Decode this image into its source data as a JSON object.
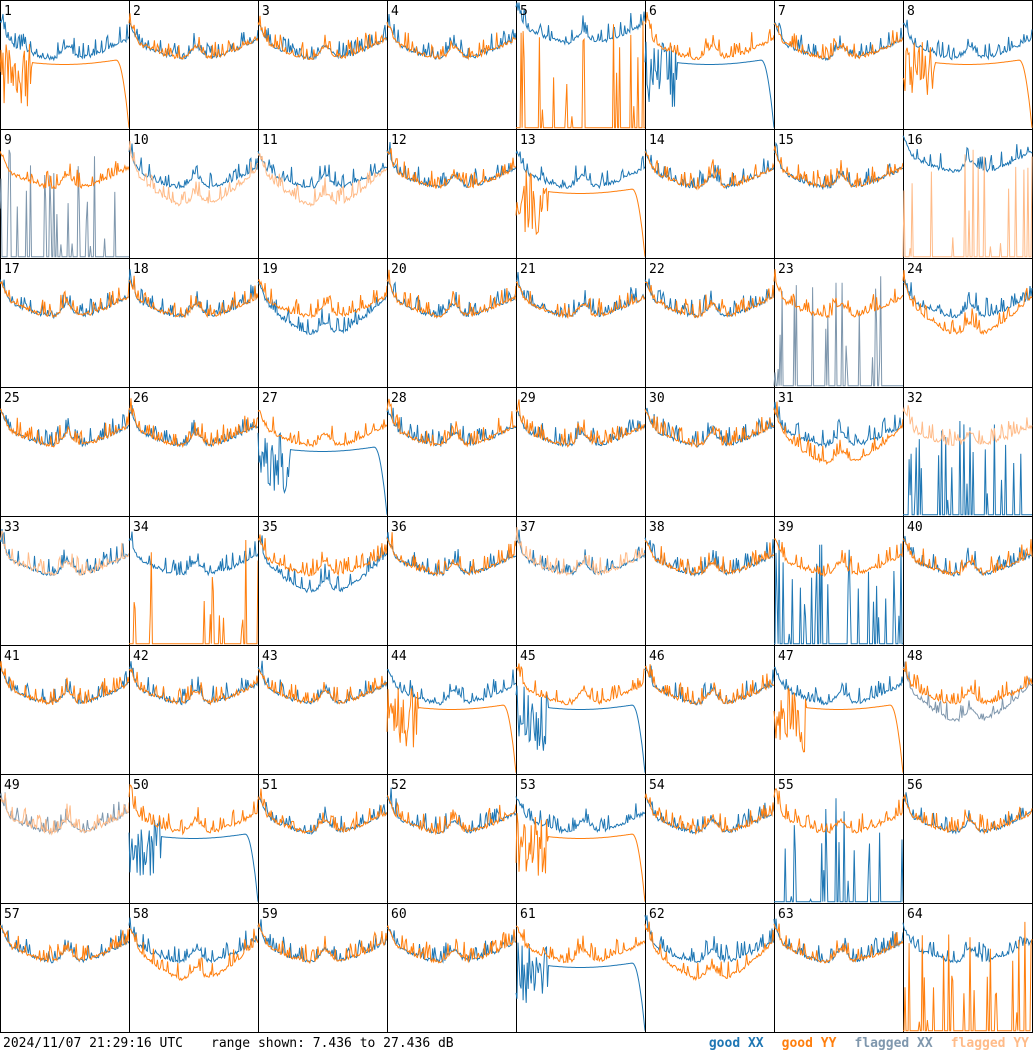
{
  "footer": {
    "timestamp": "2024/11/07 21:29:16 UTC",
    "range": "range shown: 7.436 to 27.436 dB"
  },
  "legend": {
    "good_xx": "good XX",
    "good_yy": "good YY",
    "flagged_xx": "flagged XX",
    "flagged_yy": "flagged YY"
  },
  "colors": {
    "good_xx": "#1f77b4",
    "good_yy": "#ff7f0e",
    "flagged_xx": "#7f97ad",
    "flagged_yy": "#ffbb88"
  },
  "chart_data": {
    "type": "line",
    "grid": "8x8 small multiples",
    "ylim": [
      7.436,
      27.436
    ],
    "yunit": "dB",
    "series_names": [
      "good XX",
      "good YY",
      "flagged XX",
      "flagged YY"
    ],
    "panels": [
      {
        "label": "1",
        "xx": "good",
        "yy": "good",
        "xx_shape": "normal",
        "yy_shape": "rolloff"
      },
      {
        "label": "2",
        "xx": "good",
        "yy": "good",
        "xx_shape": "normal",
        "yy_shape": "normal"
      },
      {
        "label": "3",
        "xx": "good",
        "yy": "good",
        "xx_shape": "normal",
        "yy_shape": "normal"
      },
      {
        "label": "4",
        "xx": "good",
        "yy": "good",
        "xx_shape": "normal",
        "yy_shape": "normal"
      },
      {
        "label": "5",
        "xx": "good",
        "yy": "good",
        "xx_shape": "high",
        "yy_shape": "spikes"
      },
      {
        "label": "6",
        "xx": "good",
        "yy": "good",
        "xx_shape": "rolloff",
        "yy_shape": "normal"
      },
      {
        "label": "7",
        "xx": "good",
        "yy": "good",
        "xx_shape": "normal",
        "yy_shape": "normal"
      },
      {
        "label": "8",
        "xx": "good",
        "yy": "good",
        "xx_shape": "normal",
        "yy_shape": "rolloff"
      },
      {
        "label": "9",
        "xx": "flagged",
        "yy": "good",
        "xx_shape": "spikes",
        "yy_shape": "normal"
      },
      {
        "label": "10",
        "xx": "good",
        "yy": "flagged",
        "xx_shape": "normal",
        "yy_shape": "low"
      },
      {
        "label": "11",
        "xx": "good",
        "yy": "flagged",
        "xx_shape": "normal",
        "yy_shape": "low"
      },
      {
        "label": "12",
        "xx": "good",
        "yy": "good",
        "xx_shape": "normal",
        "yy_shape": "normal"
      },
      {
        "label": "13",
        "xx": "good",
        "yy": "good",
        "xx_shape": "normal",
        "yy_shape": "rolloff"
      },
      {
        "label": "14",
        "xx": "good",
        "yy": "good",
        "xx_shape": "normal",
        "yy_shape": "normal"
      },
      {
        "label": "15",
        "xx": "good",
        "yy": "good",
        "xx_shape": "normal",
        "yy_shape": "normal"
      },
      {
        "label": "16",
        "xx": "good",
        "yy": "flagged",
        "xx_shape": "high",
        "yy_shape": "spikes"
      },
      {
        "label": "17",
        "xx": "good",
        "yy": "good",
        "xx_shape": "normal",
        "yy_shape": "normal"
      },
      {
        "label": "18",
        "xx": "good",
        "yy": "good",
        "xx_shape": "normal",
        "yy_shape": "normal"
      },
      {
        "label": "19",
        "xx": "good",
        "yy": "good",
        "xx_shape": "low",
        "yy_shape": "normal"
      },
      {
        "label": "20",
        "xx": "good",
        "yy": "good",
        "xx_shape": "normal",
        "yy_shape": "normal"
      },
      {
        "label": "21",
        "xx": "good",
        "yy": "good",
        "xx_shape": "normal",
        "yy_shape": "normal"
      },
      {
        "label": "22",
        "xx": "good",
        "yy": "good",
        "xx_shape": "normal",
        "yy_shape": "normal"
      },
      {
        "label": "23",
        "xx": "flagged",
        "yy": "good",
        "xx_shape": "spikes",
        "yy_shape": "normal"
      },
      {
        "label": "24",
        "xx": "good",
        "yy": "good",
        "xx_shape": "normal",
        "yy_shape": "low"
      },
      {
        "label": "25",
        "xx": "good",
        "yy": "good",
        "xx_shape": "normal",
        "yy_shape": "normal"
      },
      {
        "label": "26",
        "xx": "good",
        "yy": "good",
        "xx_shape": "normal",
        "yy_shape": "normal"
      },
      {
        "label": "27",
        "xx": "good",
        "yy": "good",
        "xx_shape": "rolloff",
        "yy_shape": "normal"
      },
      {
        "label": "28",
        "xx": "good",
        "yy": "good",
        "xx_shape": "normal",
        "yy_shape": "normal"
      },
      {
        "label": "29",
        "xx": "good",
        "yy": "good",
        "xx_shape": "normal",
        "yy_shape": "normal"
      },
      {
        "label": "30",
        "xx": "good",
        "yy": "good",
        "xx_shape": "normal",
        "yy_shape": "normal"
      },
      {
        "label": "31",
        "xx": "good",
        "yy": "good",
        "xx_shape": "normal",
        "yy_shape": "low"
      },
      {
        "label": "32",
        "xx": "good",
        "yy": "flagged",
        "xx_shape": "spikes",
        "yy_shape": "normal"
      },
      {
        "label": "33",
        "xx": "good",
        "yy": "flagged",
        "xx_shape": "normal",
        "yy_shape": "normal"
      },
      {
        "label": "34",
        "xx": "good",
        "yy": "good",
        "xx_shape": "normal",
        "yy_shape": "spikes"
      },
      {
        "label": "35",
        "xx": "good",
        "yy": "good",
        "xx_shape": "low",
        "yy_shape": "normal"
      },
      {
        "label": "36",
        "xx": "good",
        "yy": "good",
        "xx_shape": "normal",
        "yy_shape": "normal"
      },
      {
        "label": "37",
        "xx": "good",
        "yy": "flagged",
        "xx_shape": "normal",
        "yy_shape": "normal"
      },
      {
        "label": "38",
        "xx": "good",
        "yy": "good",
        "xx_shape": "normal",
        "yy_shape": "normal"
      },
      {
        "label": "39",
        "xx": "good",
        "yy": "good",
        "xx_shape": "spikes",
        "yy_shape": "normal"
      },
      {
        "label": "40",
        "xx": "good",
        "yy": "good",
        "xx_shape": "normal",
        "yy_shape": "normal"
      },
      {
        "label": "41",
        "xx": "good",
        "yy": "good",
        "xx_shape": "normal",
        "yy_shape": "normal"
      },
      {
        "label": "42",
        "xx": "good",
        "yy": "good",
        "xx_shape": "normal",
        "yy_shape": "normal"
      },
      {
        "label": "43",
        "xx": "good",
        "yy": "good",
        "xx_shape": "normal",
        "yy_shape": "normal"
      },
      {
        "label": "44",
        "xx": "good",
        "yy": "good",
        "xx_shape": "normal",
        "yy_shape": "rolloff"
      },
      {
        "label": "45",
        "xx": "good",
        "yy": "good",
        "xx_shape": "rolloff",
        "yy_shape": "normal"
      },
      {
        "label": "46",
        "xx": "good",
        "yy": "good",
        "xx_shape": "normal",
        "yy_shape": "normal"
      },
      {
        "label": "47",
        "xx": "good",
        "yy": "good",
        "xx_shape": "normal",
        "yy_shape": "rolloff"
      },
      {
        "label": "48",
        "xx": "flagged",
        "yy": "good",
        "xx_shape": "low",
        "yy_shape": "normal"
      },
      {
        "label": "49",
        "xx": "flagged",
        "yy": "flagged",
        "xx_shape": "normal",
        "yy_shape": "normal"
      },
      {
        "label": "50",
        "xx": "good",
        "yy": "good",
        "xx_shape": "rolloff",
        "yy_shape": "normal"
      },
      {
        "label": "51",
        "xx": "good",
        "yy": "good",
        "xx_shape": "normal",
        "yy_shape": "normal"
      },
      {
        "label": "52",
        "xx": "good",
        "yy": "good",
        "xx_shape": "normal",
        "yy_shape": "normal"
      },
      {
        "label": "53",
        "xx": "good",
        "yy": "good",
        "xx_shape": "normal",
        "yy_shape": "rolloff"
      },
      {
        "label": "54",
        "xx": "good",
        "yy": "good",
        "xx_shape": "normal",
        "yy_shape": "normal"
      },
      {
        "label": "55",
        "xx": "good",
        "yy": "good",
        "xx_shape": "spikes",
        "yy_shape": "normal"
      },
      {
        "label": "56",
        "xx": "good",
        "yy": "good",
        "xx_shape": "normal",
        "yy_shape": "normal"
      },
      {
        "label": "57",
        "xx": "good",
        "yy": "good",
        "xx_shape": "normal",
        "yy_shape": "normal"
      },
      {
        "label": "58",
        "xx": "good",
        "yy": "good",
        "xx_shape": "normal",
        "yy_shape": "low"
      },
      {
        "label": "59",
        "xx": "good",
        "yy": "good",
        "xx_shape": "normal",
        "yy_shape": "normal"
      },
      {
        "label": "60",
        "xx": "good",
        "yy": "good",
        "xx_shape": "normal",
        "yy_shape": "normal"
      },
      {
        "label": "61",
        "xx": "good",
        "yy": "good",
        "xx_shape": "rolloff",
        "yy_shape": "normal"
      },
      {
        "label": "62",
        "xx": "good",
        "yy": "good",
        "xx_shape": "normal",
        "yy_shape": "low"
      },
      {
        "label": "63",
        "xx": "good",
        "yy": "good",
        "xx_shape": "normal",
        "yy_shape": "normal"
      },
      {
        "label": "64",
        "xx": "good",
        "yy": "good",
        "xx_shape": "normal",
        "yy_shape": "spikes"
      }
    ]
  }
}
